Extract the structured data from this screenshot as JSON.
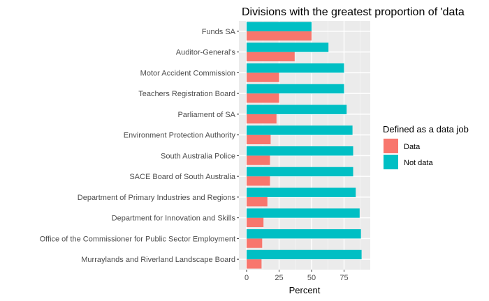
{
  "chart_data": {
    "type": "bar",
    "orientation": "horizontal",
    "position": "dodge",
    "title": "Divisions with the greatest proportion of 'data",
    "xlabel": "Percent",
    "ylabel": "",
    "xlim": [
      0,
      90
    ],
    "xticks": [
      0,
      25,
      50,
      75
    ],
    "grid": true,
    "categories": [
      "Funds SA",
      "Auditor-General's",
      "Motor Accident Commission",
      "Teachers Registration Board",
      "Parliament of SA",
      "Environment Protection Authority",
      "South Australia Police",
      "SACE Board of South Australia",
      "Department of Primary Industries and Regions",
      "Department for Innovation and Skills",
      "Office of the Commissioner for Public Sector Employment",
      "Murraylands and Riverland Landscape Board"
    ],
    "series": [
      {
        "name": "Data",
        "color": "#F8766D",
        "values": [
          50,
          37,
          25,
          25,
          23,
          18.5,
          18,
          18,
          16,
          13,
          12,
          11.5
        ]
      },
      {
        "name": "Not data",
        "color": "#00BFC4",
        "values": [
          50,
          63,
          75,
          75,
          77,
          81.5,
          82,
          82,
          84,
          87,
          88,
          88.5
        ]
      }
    ],
    "legend": {
      "title": "Defined as a data job",
      "position": "right"
    }
  }
}
